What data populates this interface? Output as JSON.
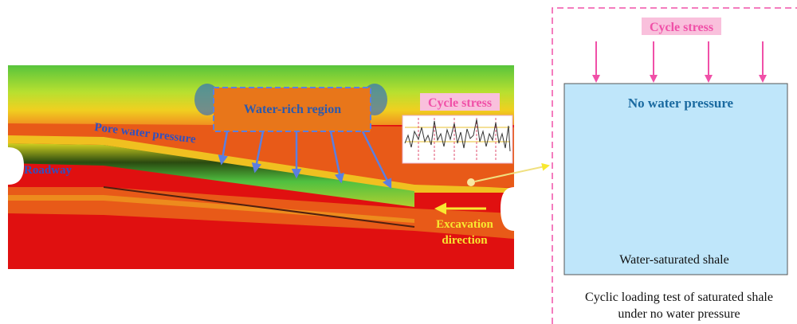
{
  "left_panel": {
    "water_rich_region": "Water-rich region",
    "pore_water_pressure": "Pore water pressure",
    "roadway": "Roadway",
    "cycle_stress": "Cycle stress",
    "excavation_direction": [
      "Excavation",
      "direction"
    ]
  },
  "right_panel": {
    "cycle_stress": "Cycle stress",
    "no_water_pressure": "No water pressure",
    "specimen": "Water-saturated shale",
    "caption": [
      "Cyclic loading test of saturated shale",
      "under no water pressure"
    ]
  }
}
